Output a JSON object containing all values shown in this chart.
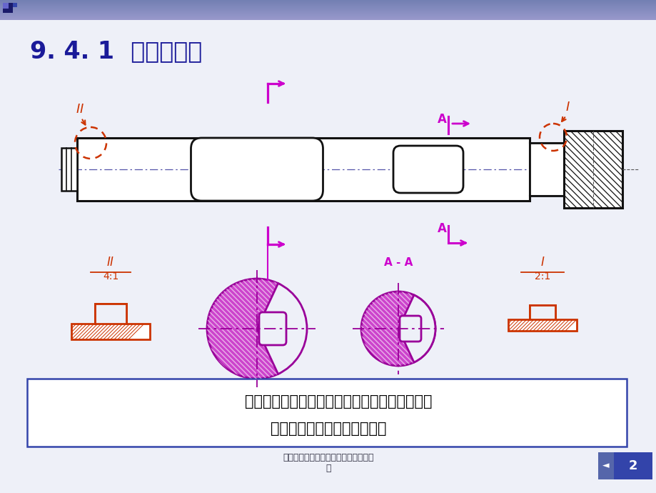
{
  "title": "9. 4. 1  局部放大图",
  "title_color": "#1a1a99",
  "footer_text": "工程制图资料局部放大图和简化画法课\n件",
  "page_num": "2",
  "text_line1": "    把机件上部分结构用大于原图形所采用的比例画",
  "text_line2": "出，这种图形称为局部放大图",
  "orange": "#cc3300",
  "magenta": "#cc00cc",
  "dark": "#111111",
  "gray_center": "#7777aa",
  "slide_bg": "#eef0f8",
  "header_color": "#8090bb"
}
